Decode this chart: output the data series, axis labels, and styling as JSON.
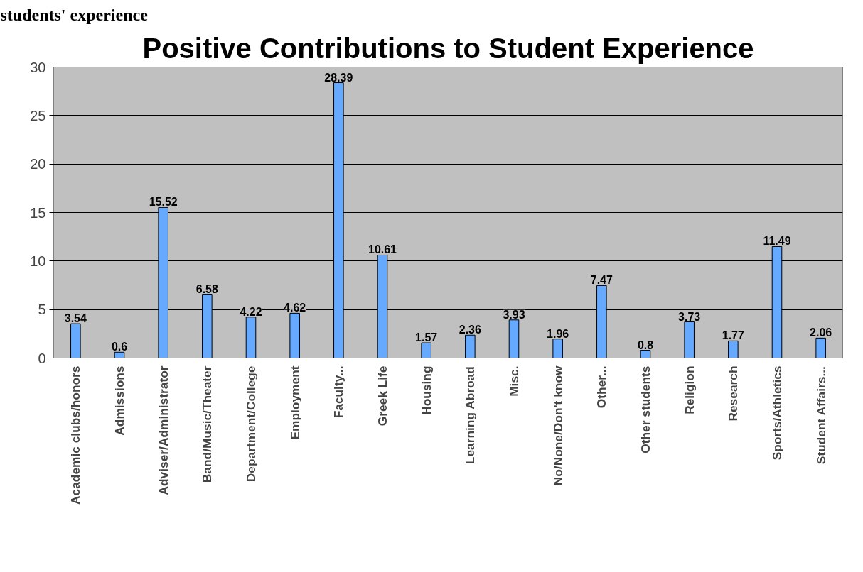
{
  "chart_data": {
    "type": "bar",
    "title": "Positive Contributions to Student Experience",
    "annotations": [
      "students' experience"
    ],
    "categories": [
      "Academic clubs/honors",
      "Admissions",
      "Adviser/Administrator",
      "Band/Music/Theater",
      "Department/College",
      "Employment",
      "Faculty...",
      "Greek Life",
      "Housing",
      "Learning Abroad",
      "Misc.",
      "No/None/Don't know",
      "Other...",
      "Other students",
      "Religion",
      "Research",
      "Sports/Athletics",
      "Student Affairs..."
    ],
    "values": [
      3.54,
      0.6,
      15.52,
      6.58,
      4.22,
      4.62,
      28.39,
      10.61,
      1.57,
      2.36,
      3.93,
      1.96,
      7.47,
      0.8,
      3.73,
      1.77,
      11.49,
      2.06
    ],
    "color": "#66aaff",
    "ylim": [
      0,
      30
    ],
    "yticks": [
      0,
      5,
      10,
      15,
      20,
      25,
      30
    ],
    "grid": "y",
    "data_labels": true
  }
}
